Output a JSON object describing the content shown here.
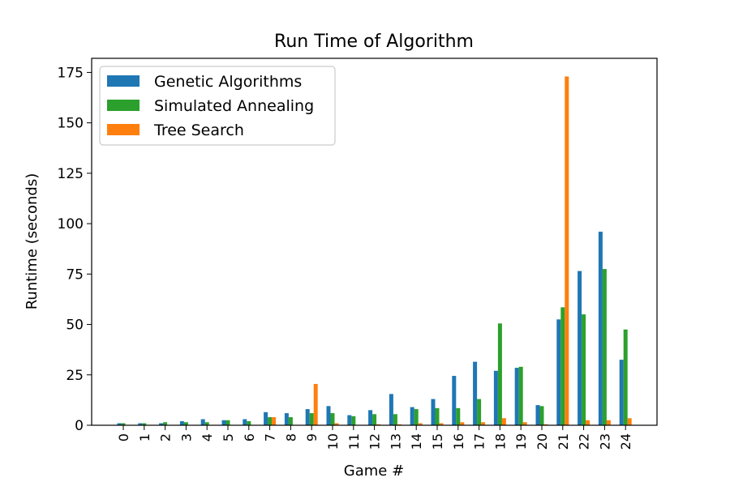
{
  "chart_data": {
    "type": "bar",
    "title": "Run Time of Algorithm",
    "xlabel": "Game #",
    "ylabel": "Runtime (seconds)",
    "ylim": [
      0,
      182
    ],
    "yticks": [
      0,
      25,
      50,
      75,
      100,
      125,
      150,
      175
    ],
    "categories": [
      "0",
      "1",
      "2",
      "3",
      "4",
      "5",
      "6",
      "7",
      "8",
      "9",
      "10",
      "11",
      "12",
      "13",
      "14",
      "15",
      "16",
      "17",
      "18",
      "19",
      "20",
      "21",
      "22",
      "23",
      "24"
    ],
    "legend_position": "top-left",
    "grid": false,
    "series": [
      {
        "name": "Genetic Algorithms",
        "color": "#1f77b4",
        "values": [
          1.0,
          1.0,
          1.0,
          2.0,
          3.0,
          2.5,
          3.0,
          6.5,
          6.0,
          8.0,
          9.5,
          5.0,
          7.5,
          15.5,
          9.0,
          13.0,
          24.5,
          31.5,
          27.0,
          28.5,
          10.0,
          52.5,
          76.5,
          96.0,
          32.5
        ]
      },
      {
        "name": "Simulated Annealing",
        "color": "#2ca02c",
        "values": [
          1.0,
          1.0,
          1.5,
          1.5,
          1.5,
          2.5,
          2.0,
          4.0,
          4.0,
          6.0,
          6.0,
          4.5,
          5.5,
          5.5,
          8.0,
          8.5,
          8.5,
          13.0,
          50.5,
          29.0,
          9.5,
          58.5,
          55.0,
          77.5,
          47.5
        ]
      },
      {
        "name": "Tree Search",
        "color": "#ff7f0e",
        "values": [
          0.2,
          0.2,
          0.2,
          0.2,
          0.2,
          0.2,
          0.2,
          4.0,
          0.2,
          20.5,
          1.0,
          0.2,
          0.5,
          0.5,
          1.0,
          1.0,
          1.5,
          1.5,
          3.5,
          1.5,
          0.5,
          173.0,
          2.5,
          2.5,
          3.5
        ]
      }
    ]
  }
}
